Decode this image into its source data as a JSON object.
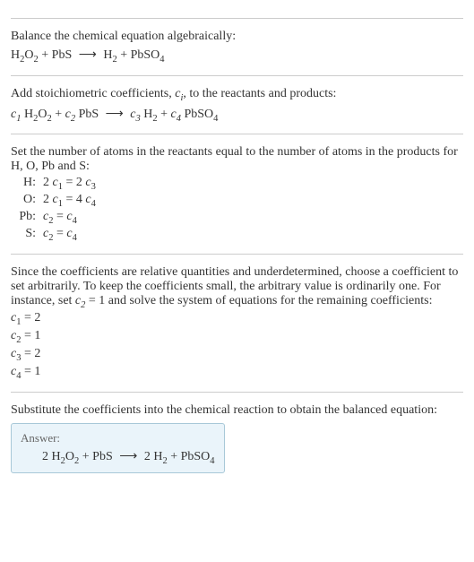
{
  "colors": {
    "text": "#333333",
    "divider": "#cccccc",
    "answer_bg": "#eaf4fa",
    "answer_border": "#a8c8d8",
    "answer_title": "#666666"
  },
  "fontsize": {
    "body": 14,
    "answer_title": 13,
    "sub": 10
  },
  "section1": {
    "instruction": "Balance the chemical equation algebraically:",
    "lhs1": "H",
    "lhs1_sub1": "2",
    "lhs1_mid": "O",
    "lhs1_sub2": "2",
    "plus1": " + ",
    "lhs2": "PbS",
    "arrow": "⟶",
    "rhs1": "H",
    "rhs1_sub": "2",
    "plus2": " + ",
    "rhs2": "PbSO",
    "rhs2_sub": "4"
  },
  "section2": {
    "instruction1": "Add stoichiometric coefficients, ",
    "ci": "c",
    "ci_sub": "i",
    "instruction2": ", to the reactants and products:",
    "c1": "c",
    "c1_sub": "1",
    "sp1": " ",
    "h2o2_h": "H",
    "h2o2_s1": "2",
    "h2o2_o": "O",
    "h2o2_s2": "2",
    "plus1": " + ",
    "c2": "c",
    "c2_sub": "2",
    "sp2": " ",
    "pbs": "PbS",
    "arrow": "⟶",
    "c3": "c",
    "c3_sub": "3",
    "sp3": " ",
    "h2_h": "H",
    "h2_s": "2",
    "plus2": " + ",
    "c4": "c",
    "c4_sub": "4",
    "sp4": " ",
    "pbso4": "PbSO",
    "pbso4_s": "4"
  },
  "section3": {
    "instruction": "Set the number of atoms in the reactants equal to the number of atoms in the products for H, O, Pb and S:",
    "rows": [
      {
        "label": "H:",
        "lhs_coef": "2 ",
        "lhs_c": "c",
        "lhs_sub": "1",
        "eq": " = ",
        "rhs_coef": "2 ",
        "rhs_c": "c",
        "rhs_sub": "3"
      },
      {
        "label": "O:",
        "lhs_coef": "2 ",
        "lhs_c": "c",
        "lhs_sub": "1",
        "eq": " = ",
        "rhs_coef": "4 ",
        "rhs_c": "c",
        "rhs_sub": "4"
      },
      {
        "label": "Pb:",
        "lhs_coef": "",
        "lhs_c": "c",
        "lhs_sub": "2",
        "eq": " = ",
        "rhs_coef": "",
        "rhs_c": "c",
        "rhs_sub": "4"
      },
      {
        "label": "S:",
        "lhs_coef": "",
        "lhs_c": "c",
        "lhs_sub": "2",
        "eq": " = ",
        "rhs_coef": "",
        "rhs_c": "c",
        "rhs_sub": "4"
      }
    ]
  },
  "section4": {
    "instruction1": "Since the coefficients are relative quantities and underdetermined, choose a coefficient to set arbitrarily. To keep the coefficients small, the arbitrary value is ordinarily one. For instance, set ",
    "c2": "c",
    "c2_sub": "2",
    "eq1": " = 1",
    "instruction2": " and solve the system of equations for the remaining coefficients:",
    "rows": [
      {
        "c": "c",
        "sub": "1",
        "rhs": " = 2"
      },
      {
        "c": "c",
        "sub": "2",
        "rhs": " = 1"
      },
      {
        "c": "c",
        "sub": "3",
        "rhs": " = 2"
      },
      {
        "c": "c",
        "sub": "4",
        "rhs": " = 1"
      }
    ]
  },
  "section5": {
    "instruction": "Substitute the coefficients into the chemical reaction to obtain the balanced equation:",
    "answer_title": "Answer:",
    "coef1": "2 ",
    "h2o2_h": "H",
    "h2o2_s1": "2",
    "h2o2_o": "O",
    "h2o2_s2": "2",
    "plus1": " + ",
    "pbs": "PbS",
    "arrow": "⟶",
    "coef3": "2 ",
    "h2_h": "H",
    "h2_s": "2",
    "plus2": " + ",
    "pbso4": "PbSO",
    "pbso4_s": "4"
  }
}
